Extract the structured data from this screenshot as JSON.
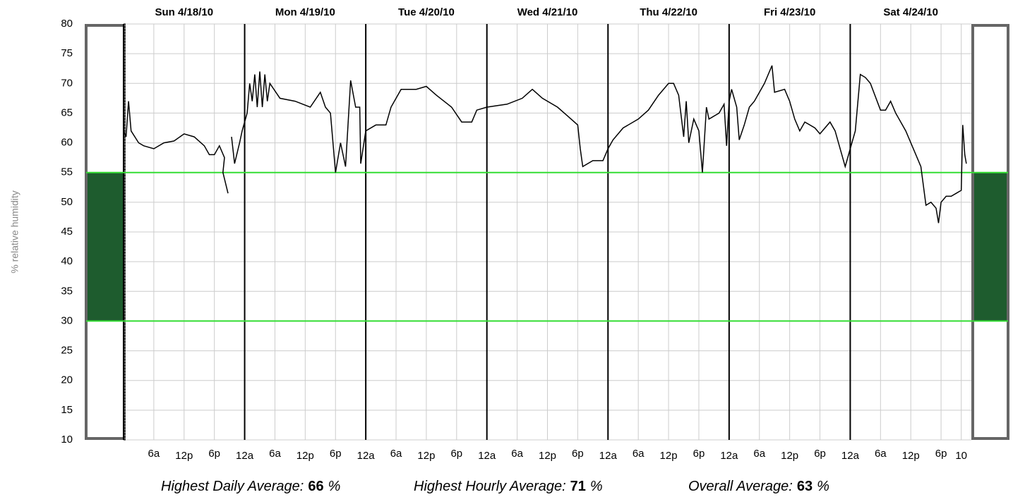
{
  "chart_data": {
    "type": "line",
    "y_label": "% relative humidity",
    "day_labels": [
      {
        "value": 12,
        "label": "Sun 4/18/10"
      },
      {
        "value": 36,
        "label": "Mon 4/19/10"
      },
      {
        "value": 60,
        "label": "Tue 4/20/10"
      },
      {
        "value": 84,
        "label": "Wed 4/21/10"
      },
      {
        "value": 108,
        "label": "Thu 4/22/10"
      },
      {
        "value": 132,
        "label": "Fri 4/23/10"
      },
      {
        "value": 156,
        "label": "Sat 4/24/10"
      }
    ],
    "day_lines": [
      24,
      48,
      72,
      96,
      120,
      144
    ],
    "xlim": [
      0,
      168
    ],
    "xticks": [
      {
        "value": 6,
        "label": "6a"
      },
      {
        "value": 12,
        "label": "12p"
      },
      {
        "value": 18,
        "label": "6p"
      },
      {
        "value": 24,
        "label": "12a"
      },
      {
        "value": 30,
        "label": "6a"
      },
      {
        "value": 36,
        "label": "12p"
      },
      {
        "value": 42,
        "label": "6p"
      },
      {
        "value": 48,
        "label": "12a"
      },
      {
        "value": 54,
        "label": "6a"
      },
      {
        "value": 60,
        "label": "12p"
      },
      {
        "value": 66,
        "label": "6p"
      },
      {
        "value": 72,
        "label": "12a"
      },
      {
        "value": 78,
        "label": "6a"
      },
      {
        "value": 84,
        "label": "12p"
      },
      {
        "value": 90,
        "label": "6p"
      },
      {
        "value": 96,
        "label": "12a"
      },
      {
        "value": 102,
        "label": "6a"
      },
      {
        "value": 108,
        "label": "12p"
      },
      {
        "value": 114,
        "label": "6p"
      },
      {
        "value": 120,
        "label": "12a"
      },
      {
        "value": 126,
        "label": "6a"
      },
      {
        "value": 132,
        "label": "12p"
      },
      {
        "value": 138,
        "label": "6p"
      },
      {
        "value": 144,
        "label": "12a"
      },
      {
        "value": 150,
        "label": "6a"
      },
      {
        "value": 156,
        "label": "12p"
      },
      {
        "value": 162,
        "label": "6p"
      },
      {
        "value": 166,
        "label": "10"
      }
    ],
    "ylim": [
      10,
      80
    ],
    "yticks": [
      10,
      15,
      20,
      25,
      30,
      35,
      40,
      45,
      50,
      55,
      60,
      65,
      70,
      75,
      80
    ],
    "grid": true,
    "band": {
      "low": 30,
      "high": 55,
      "line_color": "#33dd33",
      "fill_color": "#1e5c2e"
    },
    "series": [
      {
        "color": "#000000",
        "x": [
          0,
          0.5,
          1,
          1.5,
          3,
          4,
          6,
          8,
          10,
          12,
          14,
          16,
          17,
          18,
          19,
          20,
          19.7,
          20.7,
          20.9,
          21.4,
          22,
          23,
          23.5,
          24.5,
          25,
          25.5,
          26,
          26.5,
          27,
          27.5,
          28,
          28.5,
          29,
          31,
          34,
          37,
          39,
          40,
          41,
          42,
          43,
          44,
          45,
          46,
          46.8,
          47,
          48,
          50,
          52,
          53,
          55,
          58,
          60,
          62,
          65,
          67,
          69,
          70,
          72,
          76,
          79,
          81,
          83,
          86,
          88,
          90,
          90.5,
          91,
          93,
          95,
          96,
          97,
          99,
          102,
          104,
          106,
          108,
          109,
          110,
          111,
          111.5,
          112,
          113,
          114,
          114.7,
          115,
          115.5,
          116,
          118,
          119,
          119.5,
          120,
          120.5,
          121.5,
          122,
          123,
          124,
          125,
          126,
          127,
          128.5,
          129,
          131,
          132,
          133,
          134,
          135,
          137,
          138,
          140,
          141,
          143,
          144,
          145,
          146,
          147,
          148,
          150,
          151,
          152,
          153,
          155,
          157,
          158,
          159,
          160,
          161,
          161.5,
          162,
          163,
          164,
          165,
          166,
          166.3,
          166.7,
          167
        ],
        "values": [
          62,
          61,
          67,
          62,
          60,
          59.5,
          59,
          60,
          60.3,
          61.5,
          61,
          59.5,
          58,
          58,
          59.5,
          57.5,
          55,
          51.5,
          null,
          61,
          56.5,
          60,
          62,
          65,
          70,
          67,
          71.5,
          66,
          72,
          66,
          71.5,
          67,
          70,
          67.5,
          67,
          66,
          68.5,
          66,
          65,
          55,
          60,
          56,
          70.5,
          66,
          66,
          56.5,
          62,
          63,
          63,
          66,
          69,
          69,
          69.5,
          68,
          66,
          63.5,
          63.5,
          65.5,
          66,
          66.5,
          67.5,
          69,
          67.5,
          66,
          64.5,
          63,
          59,
          56,
          57,
          57,
          59,
          60.5,
          62.5,
          64,
          65.5,
          68,
          70,
          70,
          68,
          61,
          67,
          60,
          64,
          62,
          55,
          59,
          66,
          64,
          65,
          66.5,
          59.5,
          67,
          69,
          66,
          60.5,
          63,
          66,
          67,
          68.5,
          70,
          73,
          68.5,
          69,
          67,
          64,
          62,
          63.5,
          62.5,
          61.5,
          63.5,
          62,
          56,
          59,
          62,
          71.5,
          71,
          70,
          65.5,
          65.5,
          67,
          65,
          62,
          58,
          56,
          49.5,
          50,
          49,
          46.5,
          50,
          51,
          51,
          51.5,
          52,
          63,
          58,
          56.5
        ]
      }
    ],
    "stats": [
      {
        "label": "Highest Daily Average:",
        "value": 66,
        "unit": "%"
      },
      {
        "label": "Highest Hourly Average:",
        "value": 71,
        "unit": "%"
      },
      {
        "label": "Overall Average:",
        "value": 63,
        "unit": "%"
      }
    ]
  }
}
